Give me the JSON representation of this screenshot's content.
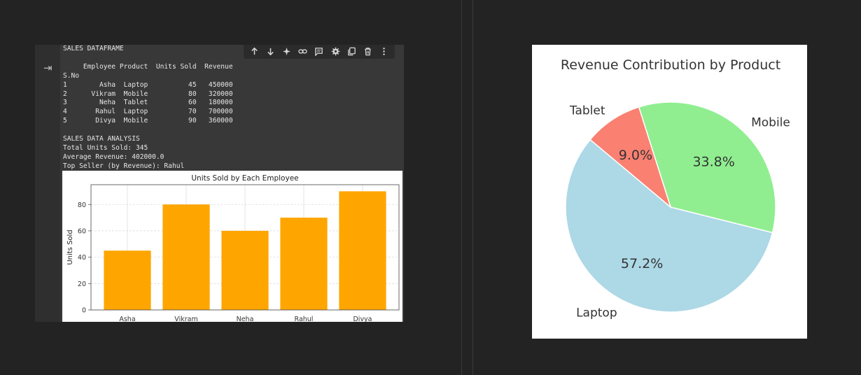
{
  "notebook": {
    "output_lines": [
      "SALES DATAFRAME",
      "",
      "     Employee Product  Units Sold  Revenue",
      "S.No",
      "1        Asha  Laptop          45   450000",
      "2      Vikram  Mobile          80   320000",
      "3        Neha  Tablet          60   180000",
      "4       Rahul  Laptop          70   700000",
      "5       Divya  Mobile          90   360000",
      "",
      "SALES DATA ANALYSIS",
      "Total Units Sold: 345",
      "Average Revenue: 402000.0",
      "Top Seller (by Revenue): Rahul"
    ],
    "toolbar_icons": [
      "move-up-icon",
      "move-down-icon",
      "sparkle-icon",
      "link-icon",
      "comment-icon",
      "settings-icon",
      "copy-icon",
      "delete-icon",
      "more-icon"
    ]
  },
  "colors": {
    "bar": "#FFA500",
    "pie_laptop": "#ADD8E6",
    "pie_mobile": "#90EE90",
    "pie_tablet": "#FA8072"
  },
  "chart_data": [
    {
      "type": "bar",
      "title": "Units Sold by Each Employee",
      "xlabel": "",
      "ylabel": "Units Sold",
      "categories": [
        "Asha",
        "Vikram",
        "Neha",
        "Rahul",
        "Divya"
      ],
      "values": [
        45,
        80,
        60,
        70,
        90
      ],
      "yticks": [
        0,
        20,
        40,
        60,
        80
      ],
      "ylim": [
        0,
        95
      ],
      "grid": true
    },
    {
      "type": "pie",
      "title": "Revenue Contribution by Product",
      "labels": [
        "Laptop",
        "Mobile",
        "Tablet"
      ],
      "values": [
        57.2,
        33.8,
        9.0
      ],
      "pct_labels": [
        "57.2%",
        "33.8%",
        "9.0%"
      ]
    }
  ]
}
